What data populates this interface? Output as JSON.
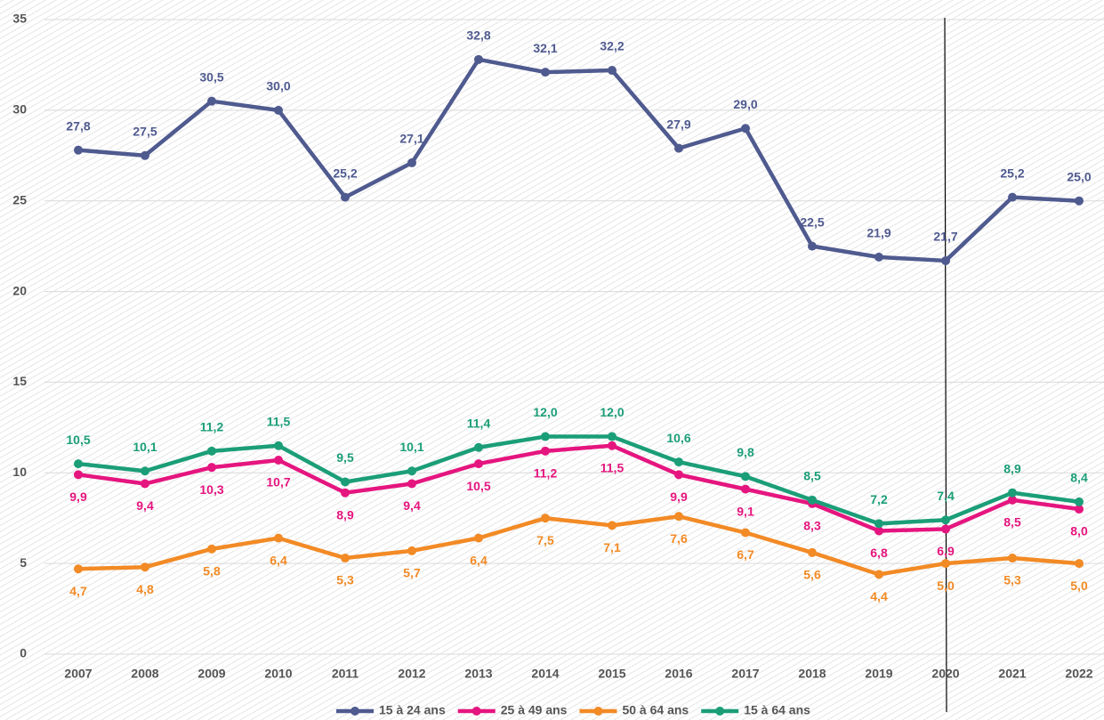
{
  "chart_data": {
    "type": "line",
    "categories": [
      "2007",
      "2008",
      "2009",
      "2010",
      "2011",
      "2012",
      "2013",
      "2014",
      "2015",
      "2016",
      "2017",
      "2018",
      "2019",
      "2020",
      "2021",
      "2022"
    ],
    "series": [
      {
        "name": "15 à 24 ans",
        "color": "#4f5a8f",
        "values": [
          27.8,
          27.5,
          30.5,
          30.0,
          25.2,
          27.1,
          32.8,
          32.1,
          32.2,
          27.9,
          29.0,
          22.5,
          21.9,
          21.7,
          25.2,
          25.0
        ],
        "value_labels": [
          "27,8",
          "27,5",
          "30,5",
          "30,0",
          "25,2",
          "27,1",
          "32,8",
          "32,1",
          "32,2",
          "27,9",
          "29,0",
          "22,5",
          "21,9",
          "21,7",
          "25,2",
          "25,0"
        ]
      },
      {
        "name": "25 à 49 ans",
        "color": "#e5157f",
        "values": [
          9.9,
          9.4,
          10.3,
          10.7,
          8.9,
          9.4,
          10.5,
          11.2,
          11.5,
          9.9,
          9.1,
          8.3,
          6.8,
          6.9,
          8.5,
          8.0
        ],
        "value_labels": [
          "9,9",
          "9,4",
          "10,3",
          "10,7",
          "8,9",
          "9,4",
          "10,5",
          "11,2",
          "11,5",
          "9,9",
          "9,1",
          "8,3",
          "6,8",
          "6,9",
          "8,5",
          "8,0"
        ]
      },
      {
        "name": "50 à 64 ans",
        "color": "#f28a25",
        "values": [
          4.7,
          4.8,
          5.8,
          6.4,
          5.3,
          5.7,
          6.4,
          7.5,
          7.1,
          7.6,
          6.7,
          5.6,
          4.4,
          5.0,
          5.3,
          5.0
        ],
        "value_labels": [
          "4,7",
          "4,8",
          "5,8",
          "6,4",
          "5,3",
          "5,7",
          "6,4",
          "7,5",
          "7,1",
          "7,6",
          "6,7",
          "5,6",
          "4,4",
          "5,0",
          "5,3",
          "5,0"
        ]
      },
      {
        "name": "15 à 64 ans",
        "color": "#1b9e78",
        "values": [
          10.5,
          10.1,
          11.2,
          11.5,
          9.5,
          10.1,
          11.4,
          12.0,
          12.0,
          10.6,
          9.8,
          8.5,
          7.2,
          7.4,
          8.9,
          8.4
        ],
        "value_labels": [
          "10,5",
          "10,1",
          "11,2",
          "11,5",
          "9,5",
          "10,1",
          "11,4",
          "12,0",
          "12,0",
          "10,6",
          "9,8",
          "8,5",
          "7,2",
          "7,4",
          "8,9",
          "8,4"
        ]
      }
    ],
    "ylim": [
      0,
      35
    ],
    "yticks": [
      0,
      5,
      10,
      15,
      20,
      25,
      30,
      35
    ],
    "grid": true,
    "legend": "bottom"
  }
}
